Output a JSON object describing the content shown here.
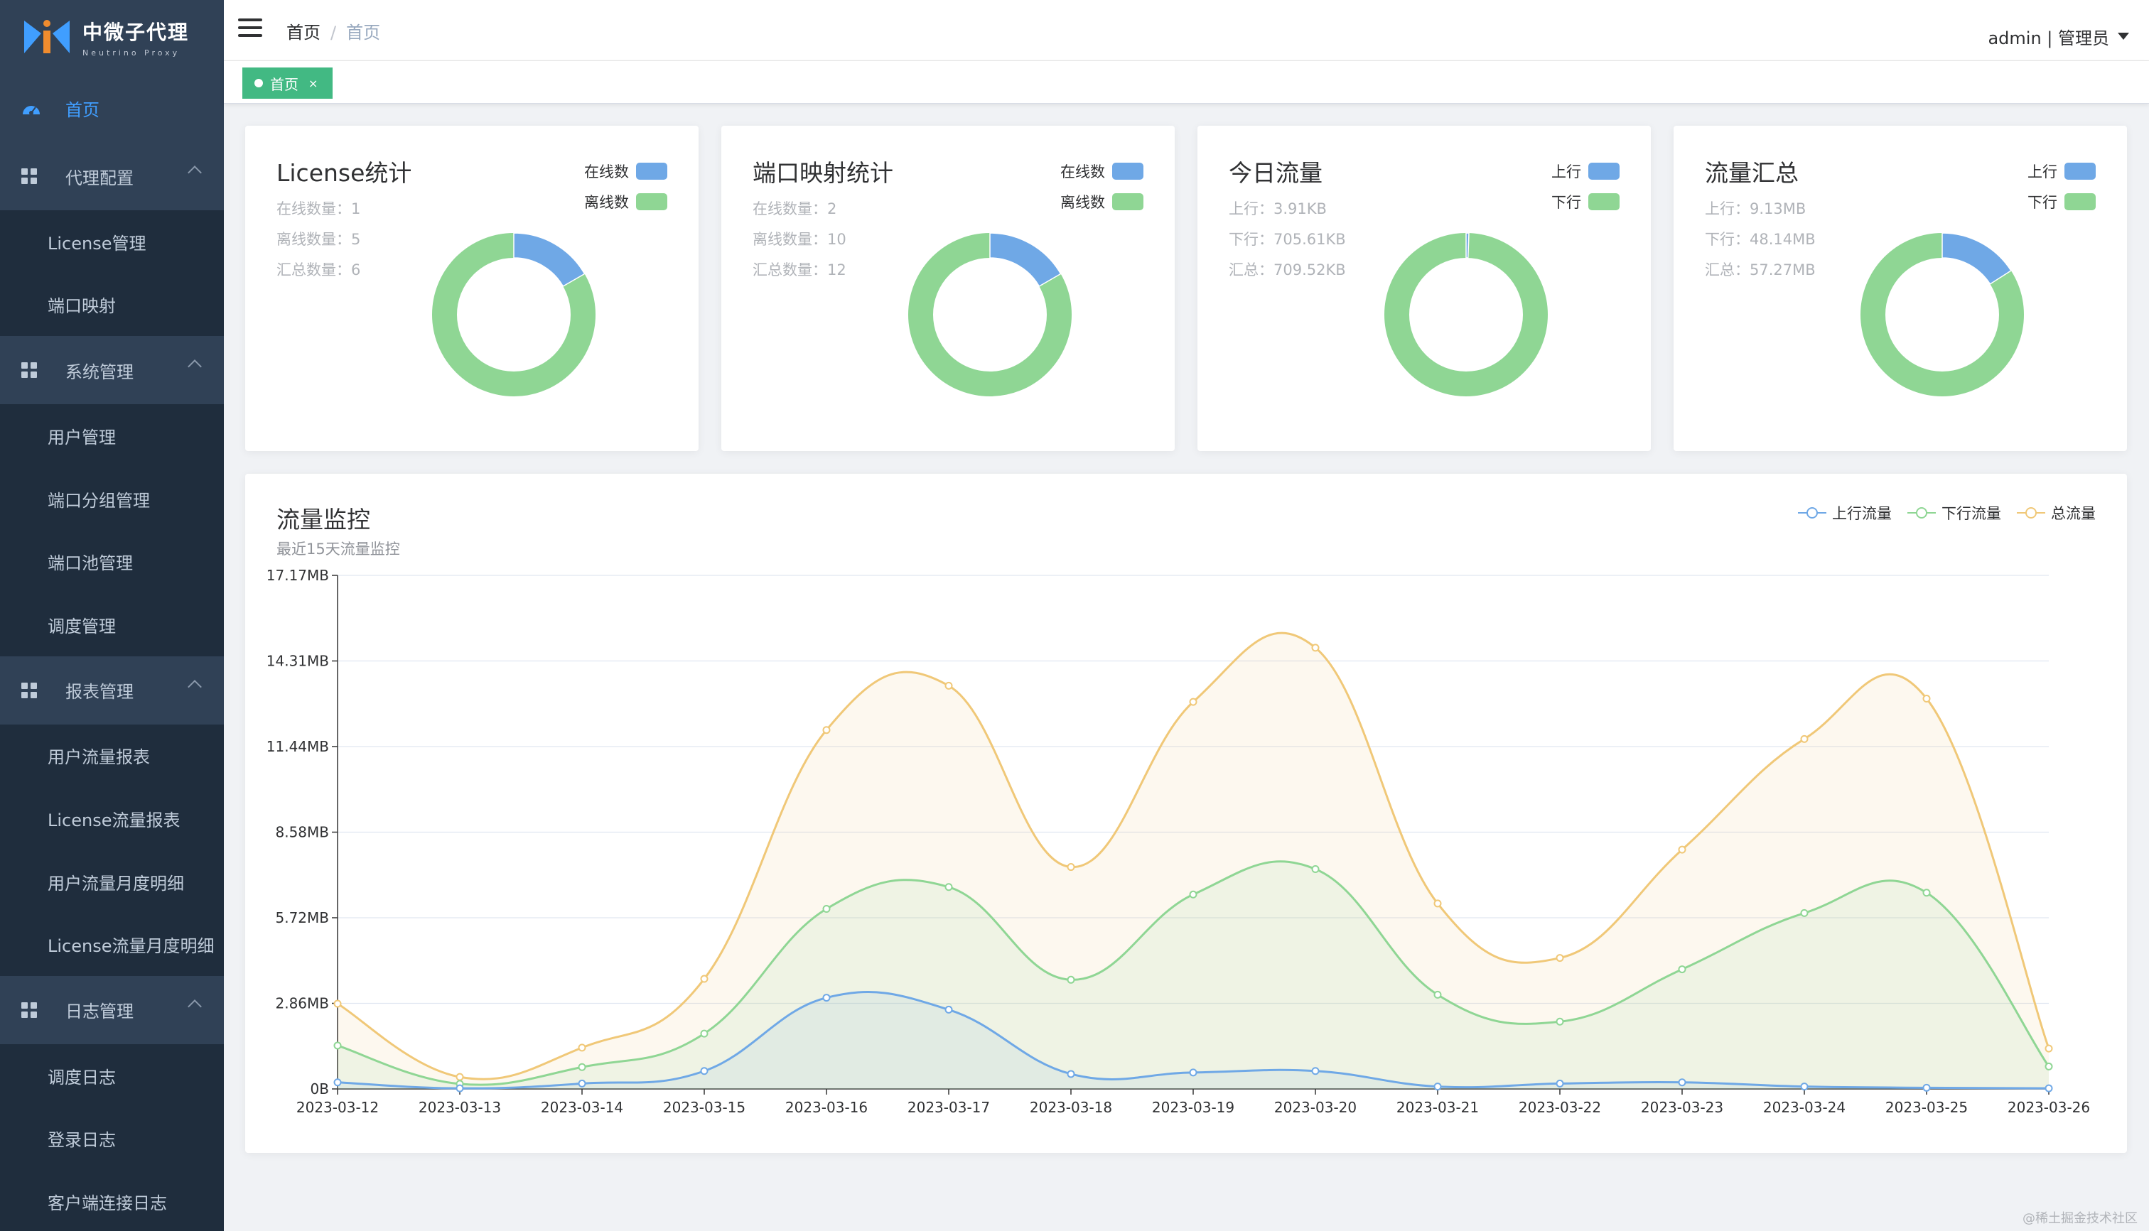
{
  "app": {
    "logo_cn": "中微子代理",
    "logo_en": "Neutrino Proxy"
  },
  "sidebar": {
    "home": "首页",
    "groups": [
      {
        "label": "代理配置",
        "items": [
          "License管理",
          "端口映射"
        ]
      },
      {
        "label": "系统管理",
        "items": [
          "用户管理",
          "端口分组管理",
          "端口池管理",
          "调度管理"
        ]
      },
      {
        "label": "报表管理",
        "items": [
          "用户流量报表",
          "License流量报表",
          "用户流量月度明细",
          "License流量月度明细"
        ]
      },
      {
        "label": "日志管理",
        "items": [
          "调度日志",
          "登录日志",
          "客户端连接日志"
        ]
      }
    ]
  },
  "header": {
    "breadcrumb": [
      "首页",
      "首页"
    ],
    "breadcrumb_sep": "/",
    "user": "admin | 管理员"
  },
  "tags": {
    "active": "首页",
    "close": "×"
  },
  "colors": {
    "blue": "#6fa8e6",
    "green": "#8fd694",
    "orange": "#f0c878",
    "accent": "#42b983"
  },
  "cards": [
    {
      "title": "License统计",
      "legend": [
        "在线数",
        "离线数"
      ],
      "lines": [
        "在线数量：1",
        "离线数量：5",
        "汇总数量：6"
      ],
      "values": [
        1,
        5
      ]
    },
    {
      "title": "端口映射统计",
      "legend": [
        "在线数",
        "离线数"
      ],
      "lines": [
        "在线数量：2",
        "离线数量：10",
        "汇总数量：12"
      ],
      "values": [
        2,
        10
      ]
    },
    {
      "title": "今日流量",
      "legend": [
        "上行",
        "下行"
      ],
      "lines": [
        "上行：3.91KB",
        "下行：705.61KB",
        "汇总：709.52KB"
      ],
      "values": [
        3.91,
        705.61
      ]
    },
    {
      "title": "流量汇总",
      "legend": [
        "上行",
        "下行"
      ],
      "lines": [
        "上行：9.13MB",
        "下行：48.14MB",
        "汇总：57.27MB"
      ],
      "values": [
        9.13,
        48.14
      ]
    }
  ],
  "monitor": {
    "title": "流量监控",
    "subtitle": "最近15天流量监控",
    "legend": [
      "上行流量",
      "下行流量",
      "总流量"
    ]
  },
  "chart_data": {
    "type": "area",
    "x": [
      "2023-03-12",
      "2023-03-13",
      "2023-03-14",
      "2023-03-15",
      "2023-03-16",
      "2023-03-17",
      "2023-03-18",
      "2023-03-19",
      "2023-03-20",
      "2023-03-21",
      "2023-03-22",
      "2023-03-23",
      "2023-03-24",
      "2023-03-25",
      "2023-03-26"
    ],
    "y_ticks": [
      "0B",
      "2.86MB",
      "5.72MB",
      "8.58MB",
      "11.44MB",
      "14.31MB",
      "17.17MB"
    ],
    "ylim": [
      0,
      17.17
    ],
    "grid": true,
    "legend_position": "top-right",
    "series": [
      {
        "name": "上行流量",
        "color": "#6fa8e6",
        "values": [
          0.22,
          0.02,
          0.18,
          0.6,
          3.05,
          2.65,
          0.5,
          0.55,
          0.6,
          0.08,
          0.18,
          0.22,
          0.08,
          0.04,
          0.02
        ]
      },
      {
        "name": "下行流量",
        "color": "#8fd694",
        "values": [
          1.45,
          0.17,
          0.73,
          1.85,
          6.02,
          6.75,
          3.65,
          6.5,
          7.35,
          3.15,
          2.25,
          4.0,
          5.88,
          6.56,
          0.75
        ]
      },
      {
        "name": "总流量",
        "color": "#f0c878",
        "values": [
          2.85,
          0.4,
          1.38,
          3.68,
          12.0,
          13.48,
          7.42,
          12.94,
          14.75,
          6.2,
          4.38,
          8.0,
          11.7,
          13.05,
          1.35
        ]
      }
    ]
  },
  "watermark": "@稀土掘金技术社区"
}
